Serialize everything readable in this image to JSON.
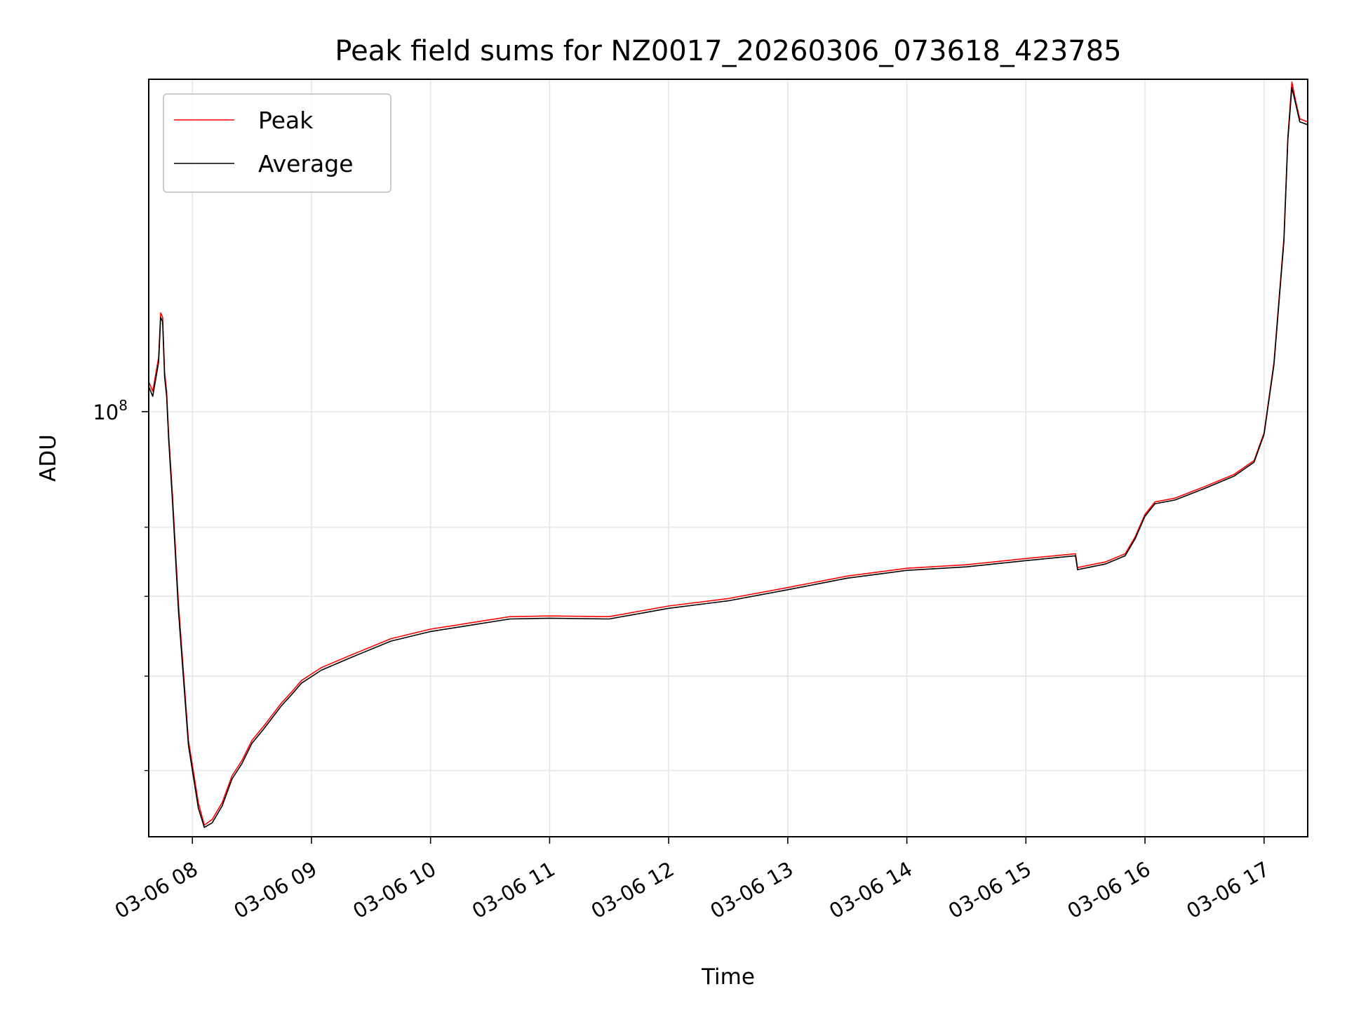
{
  "chart_data": {
    "type": "line",
    "title": "Peak field sums for NZ0017_20260306_073618_423785",
    "xlabel": "Time",
    "ylabel": "ADU",
    "y_scale": "log",
    "xlim": [
      "03-06 07:38",
      "03-06 17:22"
    ],
    "ylim": [
      44000000,
      190000000
    ],
    "x_ticks": [
      "03-06 08",
      "03-06 09",
      "03-06 10",
      "03-06 11",
      "03-06 12",
      "03-06 13",
      "03-06 14",
      "03-06 15",
      "03-06 16",
      "03-06 17"
    ],
    "y_major_ticks": [
      {
        "value": 100000000,
        "base": "10",
        "exponent": "8"
      }
    ],
    "y_minor_ticks": [
      50000000,
      60000000,
      70000000,
      80000000
    ],
    "grid": true,
    "legend_position": "top-left",
    "series": [
      {
        "name": "Peak",
        "color": "#ff0000",
        "x": [
          "03-06 07:36",
          "03-06 07:40",
          "03-06 07:43",
          "03-06 07:44",
          "03-06 07:45",
          "03-06 07:46",
          "03-06 07:47",
          "03-06 07:48",
          "03-06 07:50",
          "03-06 07:53",
          "03-06 07:58",
          "03-06 08:03",
          "03-06 08:06",
          "03-06 08:10",
          "03-06 08:15",
          "03-06 08:20",
          "03-06 08:25",
          "03-06 08:30",
          "03-06 08:36",
          "03-06 08:45",
          "03-06 08:50",
          "03-06 08:55",
          "03-06 09:05",
          "03-06 09:20",
          "03-06 09:40",
          "03-06 10:00",
          "03-06 10:20",
          "03-06 10:40",
          "03-06 11:00",
          "03-06 11:30",
          "03-06 12:00",
          "03-06 12:30",
          "03-06 13:00",
          "03-06 13:30",
          "03-06 14:00",
          "03-06 14:30",
          "03-06 15:00",
          "03-06 15:25",
          "03-06 15:26",
          "03-06 15:40",
          "03-06 15:50",
          "03-06 15:55",
          "03-06 16:00",
          "03-06 16:05",
          "03-06 16:15",
          "03-06 16:30",
          "03-06 16:45",
          "03-06 16:55",
          "03-06 17:00",
          "03-06 17:05",
          "03-06 17:10",
          "03-06 17:12",
          "03-06 17:14",
          "03-06 17:16",
          "03-06 17:18",
          "03-06 17:22"
        ],
        "values": [
          108000000,
          104000000,
          111000000,
          121000000,
          120000000,
          108000000,
          104000000,
          96000000,
          85000000,
          69000000,
          53000000,
          47000000,
          45000000,
          45500000,
          47000000,
          49500000,
          51000000,
          53000000,
          54500000,
          57000000,
          58200000,
          59500000,
          61000000,
          62500000,
          64500000,
          65700000,
          66500000,
          67300000,
          67400000,
          67300000,
          68700000,
          69700000,
          71200000,
          72800000,
          73900000,
          74400000,
          75300000,
          76000000,
          74000000,
          74800000,
          76000000,
          78500000,
          82000000,
          84000000,
          84600000,
          86500000,
          88600000,
          91000000,
          96000000,
          110000000,
          140000000,
          170000000,
          189000000,
          182000000,
          176000000,
          175000000
        ]
      },
      {
        "name": "Average",
        "color": "#000000",
        "x": [
          "03-06 07:36",
          "03-06 07:40",
          "03-06 07:43",
          "03-06 07:44",
          "03-06 07:45",
          "03-06 07:46",
          "03-06 07:47",
          "03-06 07:48",
          "03-06 07:50",
          "03-06 07:53",
          "03-06 07:58",
          "03-06 08:03",
          "03-06 08:06",
          "03-06 08:10",
          "03-06 08:15",
          "03-06 08:20",
          "03-06 08:25",
          "03-06 08:30",
          "03-06 08:36",
          "03-06 08:45",
          "03-06 08:50",
          "03-06 08:55",
          "03-06 09:05",
          "03-06 09:20",
          "03-06 09:40",
          "03-06 10:00",
          "03-06 10:20",
          "03-06 10:40",
          "03-06 11:00",
          "03-06 11:30",
          "03-06 12:00",
          "03-06 12:30",
          "03-06 13:00",
          "03-06 13:30",
          "03-06 14:00",
          "03-06 14:30",
          "03-06 15:00",
          "03-06 15:25",
          "03-06 15:26",
          "03-06 15:40",
          "03-06 15:50",
          "03-06 15:55",
          "03-06 16:00",
          "03-06 16:05",
          "03-06 16:15",
          "03-06 16:30",
          "03-06 16:45",
          "03-06 16:55",
          "03-06 17:00",
          "03-06 17:05",
          "03-06 17:10",
          "03-06 17:12",
          "03-06 17:14",
          "03-06 17:16",
          "03-06 17:18",
          "03-06 17:22"
        ],
        "values": [
          107000000,
          103000000,
          110000000,
          120000000,
          119000000,
          107000000,
          103000000,
          95000000,
          84000000,
          68000000,
          52500000,
          46500000,
          44800000,
          45200000,
          46700000,
          49200000,
          50700000,
          52700000,
          54200000,
          56700000,
          57900000,
          59200000,
          60700000,
          62200000,
          64200000,
          65400000,
          66200000,
          67000000,
          67100000,
          67000000,
          68400000,
          69400000,
          70900000,
          72500000,
          73600000,
          74100000,
          75000000,
          75700000,
          73700000,
          74500000,
          75700000,
          78200000,
          81700000,
          83700000,
          84300000,
          86200000,
          88300000,
          90700000,
          95700000,
          109500000,
          139000000,
          169000000,
          187000000,
          181000000,
          175000000,
          174000000
        ]
      }
    ]
  }
}
